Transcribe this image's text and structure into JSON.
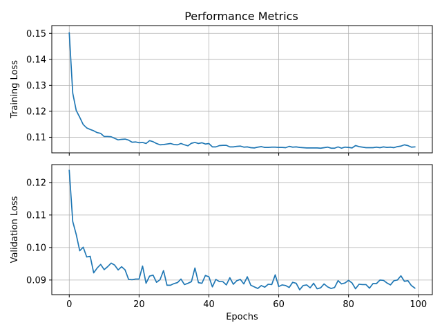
{
  "figure": {
    "title": "Performance Metrics"
  },
  "chart_data": [
    {
      "type": "line",
      "title": "Performance Metrics",
      "xlabel": "",
      "ylabel": "Training Loss",
      "xlim": [
        -5,
        104
      ],
      "ylim": [
        0.104,
        0.153
      ],
      "xticks": [
        0,
        20,
        40,
        60,
        80,
        100
      ],
      "xtick_labels_visible": false,
      "yticks": [
        0.11,
        0.12,
        0.13,
        0.14,
        0.15
      ],
      "ytick_labels": [
        "0.11",
        "0.12",
        "0.13",
        "0.14",
        "0.15"
      ],
      "grid": true,
      "color": "#1f77b4",
      "series": [
        {
          "x": [
            0,
            1,
            2,
            3,
            4,
            5,
            6,
            7,
            8,
            9,
            10,
            11,
            12,
            13,
            14,
            15,
            16,
            17,
            18,
            19,
            20,
            21,
            22,
            23,
            24,
            25,
            26,
            27,
            28,
            29,
            30,
            31,
            32,
            33,
            34,
            35,
            36,
            37,
            38,
            39,
            40,
            41,
            42,
            43,
            44,
            45,
            46,
            47,
            48,
            49,
            50,
            51,
            52,
            53,
            54,
            55,
            56,
            57,
            58,
            59,
            60,
            61,
            62,
            63,
            64,
            65,
            66,
            67,
            68,
            69,
            70,
            71,
            72,
            73,
            74,
            75,
            76,
            77,
            78,
            79,
            80,
            81,
            82,
            83,
            84,
            85,
            86,
            87,
            88,
            89,
            90,
            91,
            92,
            93,
            94,
            95,
            96,
            97,
            98,
            99
          ],
          "values": [
            0.1502,
            0.127,
            0.1203,
            0.1177,
            0.1149,
            0.1136,
            0.113,
            0.1125,
            0.1118,
            0.1115,
            0.1103,
            0.1103,
            0.1102,
            0.1096,
            0.109,
            0.1092,
            0.1093,
            0.1089,
            0.1081,
            0.1082,
            0.1079,
            0.108,
            0.1076,
            0.1087,
            0.1083,
            0.1076,
            0.1071,
            0.1072,
            0.1074,
            0.1076,
            0.1072,
            0.1071,
            0.1076,
            0.1071,
            0.1067,
            0.1077,
            0.108,
            0.1076,
            0.1079,
            0.1074,
            0.1076,
            0.1063,
            0.1063,
            0.1068,
            0.1069,
            0.1069,
            0.1063,
            0.1063,
            0.1065,
            0.1066,
            0.1062,
            0.1063,
            0.106,
            0.1059,
            0.1062,
            0.1064,
            0.1061,
            0.1061,
            0.1062,
            0.1062,
            0.1061,
            0.1061,
            0.106,
            0.1065,
            0.1062,
            0.1063,
            0.1061,
            0.106,
            0.1059,
            0.1059,
            0.1059,
            0.1059,
            0.1058,
            0.106,
            0.1062,
            0.1058,
            0.1058,
            0.1063,
            0.1058,
            0.1062,
            0.1061,
            0.1059,
            0.1068,
            0.1064,
            0.1062,
            0.106,
            0.106,
            0.106,
            0.1062,
            0.106,
            0.1063,
            0.1061,
            0.1062,
            0.106,
            0.1064,
            0.1066,
            0.1071,
            0.1068,
            0.1062,
            0.1063
          ]
        }
      ]
    },
    {
      "type": "line",
      "title": "",
      "xlabel": "Epochs",
      "ylabel": "Validation Loss",
      "xlim": [
        -5,
        104
      ],
      "ylim": [
        0.0855,
        0.1255
      ],
      "xticks": [
        0,
        20,
        40,
        60,
        80,
        100
      ],
      "xtick_labels": [
        "0",
        "20",
        "40",
        "60",
        "80",
        "100"
      ],
      "yticks": [
        0.09,
        0.1,
        0.11,
        0.12
      ],
      "ytick_labels": [
        "0.09",
        "0.10",
        "0.11",
        "0.12"
      ],
      "grid": true,
      "color": "#1f77b4",
      "series": [
        {
          "x": [
            0,
            1,
            2,
            3,
            4,
            5,
            6,
            7,
            8,
            9,
            10,
            11,
            12,
            13,
            14,
            15,
            16,
            17,
            18,
            19,
            20,
            21,
            22,
            23,
            24,
            25,
            26,
            27,
            28,
            29,
            30,
            31,
            32,
            33,
            34,
            35,
            36,
            37,
            38,
            39,
            40,
            41,
            42,
            43,
            44,
            45,
            46,
            47,
            48,
            49,
            50,
            51,
            52,
            53,
            54,
            55,
            56,
            57,
            58,
            59,
            60,
            61,
            62,
            63,
            64,
            65,
            66,
            67,
            68,
            69,
            70,
            71,
            72,
            73,
            74,
            75,
            76,
            77,
            78,
            79,
            80,
            81,
            82,
            83,
            84,
            85,
            86,
            87,
            88,
            89,
            90,
            91,
            92,
            93,
            94,
            95,
            96,
            97,
            98,
            99
          ],
          "values": [
            0.1237,
            0.108,
            0.104,
            0.099,
            0.1001,
            0.0971,
            0.0973,
            0.0922,
            0.0937,
            0.0948,
            0.0932,
            0.0941,
            0.0952,
            0.0946,
            0.0931,
            0.0941,
            0.0931,
            0.0902,
            0.0901,
            0.0903,
            0.0903,
            0.0943,
            0.089,
            0.0912,
            0.0915,
            0.0893,
            0.0901,
            0.0929,
            0.0884,
            0.0884,
            0.0889,
            0.0892,
            0.0903,
            0.0886,
            0.089,
            0.0895,
            0.0937,
            0.0892,
            0.089,
            0.0914,
            0.091,
            0.0879,
            0.0902,
            0.0895,
            0.0895,
            0.0885,
            0.0907,
            0.0887,
            0.0898,
            0.0902,
            0.0888,
            0.091,
            0.0884,
            0.0879,
            0.0874,
            0.0883,
            0.0878,
            0.0887,
            0.0886,
            0.0916,
            0.088,
            0.0885,
            0.0883,
            0.0877,
            0.0893,
            0.089,
            0.087,
            0.0883,
            0.0885,
            0.0876,
            0.089,
            0.0873,
            0.0876,
            0.0888,
            0.0879,
            0.0874,
            0.0877,
            0.0898,
            0.0888,
            0.0891,
            0.0899,
            0.0891,
            0.0873,
            0.0887,
            0.0886,
            0.0886,
            0.0875,
            0.0889,
            0.0889,
            0.09,
            0.0899,
            0.0891,
            0.0885,
            0.0898,
            0.09,
            0.0913,
            0.0896,
            0.0898,
            0.0883,
            0.0875
          ]
        }
      ]
    }
  ]
}
